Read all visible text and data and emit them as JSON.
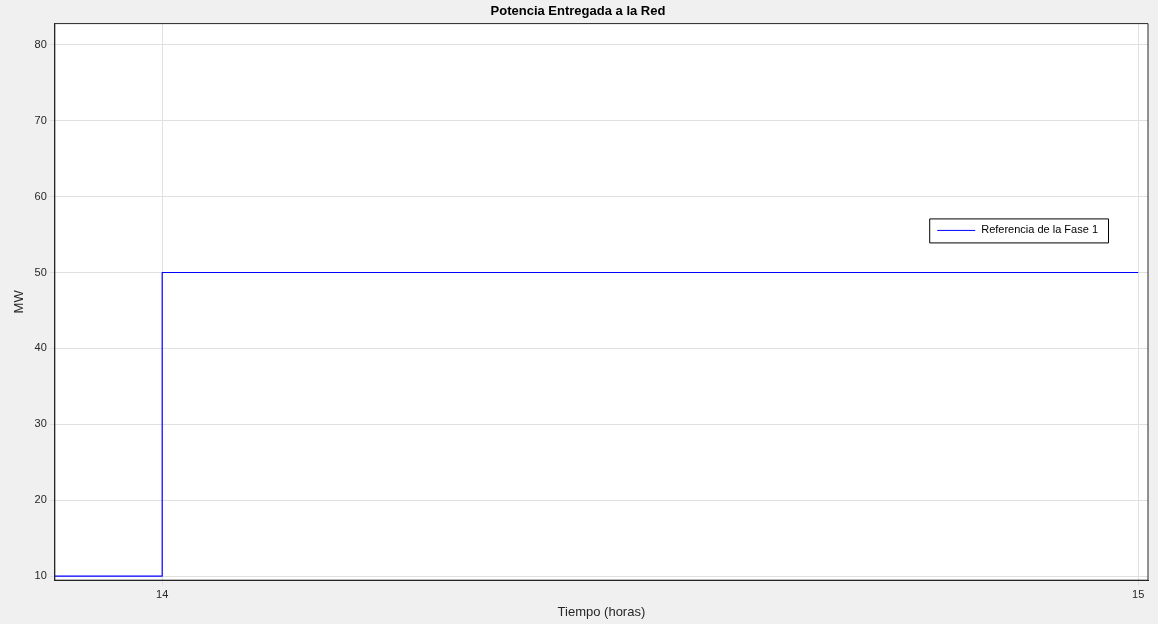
{
  "chart_data": {
    "type": "step",
    "title": "Potencia Entregada a la Red",
    "xlabel": "Tiempo (horas)",
    "ylabel": "MW",
    "series": [
      {
        "name": "Referencia de la Fase 1",
        "color": "#0000ff",
        "x": [
          13.89,
          14,
          15
        ],
        "values": [
          10,
          50,
          50
        ]
      }
    ],
    "xlim": [
      13.89,
      15.01
    ],
    "ylim": [
      9.45,
      82.8
    ],
    "xticks": [
      14,
      15
    ],
    "yticks": [
      10,
      20,
      30,
      40,
      50,
      60,
      70,
      80
    ],
    "grid": true,
    "legend": "right",
    "marker": "none",
    "line_style": "solid"
  }
}
